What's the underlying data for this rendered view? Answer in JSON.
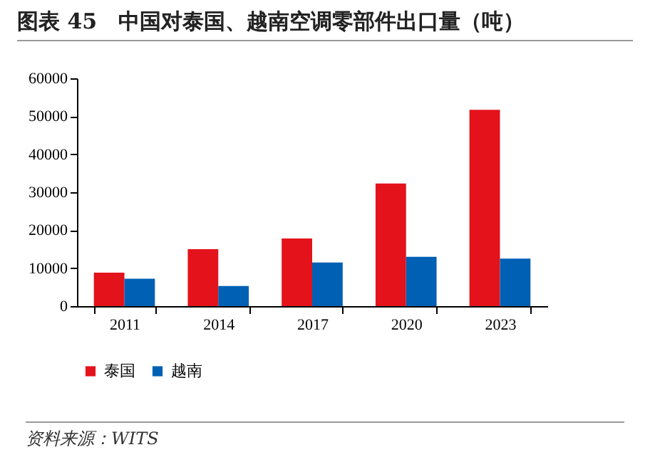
{
  "chart_data": {
    "type": "bar",
    "title": "图表 45　中国对泰国、越南空调零部件出口量（吨）",
    "annotations": [
      "资料来源：WITS"
    ],
    "categories": [
      "2011",
      "2014",
      "2017",
      "2020",
      "2023"
    ],
    "series": [
      {
        "name": "泰国",
        "color": "#e3121b",
        "values": [
          8800,
          15000,
          17800,
          32300,
          51700
        ]
      },
      {
        "name": "越南",
        "color": "#0060b4",
        "values": [
          7200,
          5300,
          11500,
          13000,
          12500
        ]
      }
    ],
    "ylim": [
      0,
      60000
    ],
    "yticks": [
      0,
      10000,
      20000,
      30000,
      40000,
      50000,
      60000
    ],
    "grid": false,
    "legend": "bottom"
  }
}
